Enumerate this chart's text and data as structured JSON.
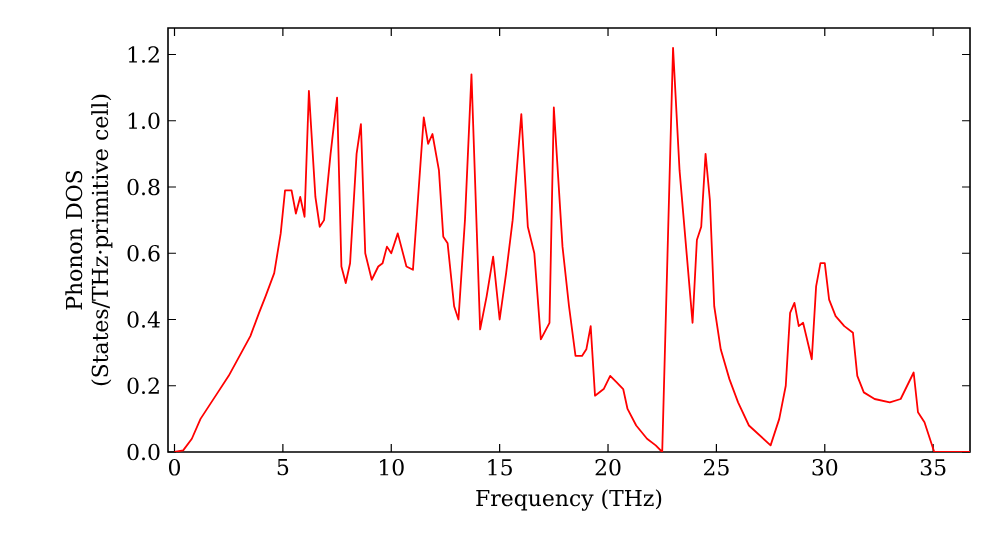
{
  "chart_data": {
    "type": "line",
    "xlabel": "Frequency (THz)",
    "ylabel": "Phonon DOS (States/THz·primitive cell)",
    "xlim": [
      -0.3,
      36.7
    ],
    "ylim": [
      0,
      1.28
    ],
    "xticks": [
      0,
      5,
      10,
      15,
      20,
      25,
      30,
      35
    ],
    "yticks": [
      {
        "value": 0,
        "label": "0.0"
      },
      {
        "value": 0.2,
        "label": "0.2"
      },
      {
        "value": 0.4,
        "label": "0.4"
      },
      {
        "value": 0.6,
        "label": "0.6"
      },
      {
        "value": 0.8,
        "label": "0.8"
      },
      {
        "value": 1.0,
        "label": "1.0"
      },
      {
        "value": 1.2,
        "label": "1.2"
      }
    ],
    "grid": false,
    "marker": "none",
    "line_style": "solid",
    "x": [
      0,
      0.4,
      0.8,
      1.2,
      1.6,
      2.0,
      2.5,
      3.0,
      3.5,
      3.9,
      4.2,
      4.6,
      4.9,
      5.1,
      5.4,
      5.6,
      5.8,
      6.0,
      6.2,
      6.5,
      6.7,
      6.9,
      7.2,
      7.5,
      7.7,
      7.9,
      8.1,
      8.4,
      8.6,
      8.8,
      9.1,
      9.4,
      9.6,
      9.8,
      10.0,
      10.3,
      10.7,
      11.0,
      11.5,
      11.7,
      11.9,
      12.2,
      12.4,
      12.6,
      12.9,
      13.1,
      13.4,
      13.7,
      14.1,
      14.4,
      14.7,
      15.0,
      15.3,
      15.6,
      16.0,
      16.3,
      16.6,
      16.9,
      17.3,
      17.5,
      17.9,
      18.2,
      18.5,
      18.8,
      19.0,
      19.2,
      19.4,
      19.8,
      20.1,
      20.4,
      20.7,
      20.9,
      21.3,
      21.8,
      22.2,
      22.5,
      23.0,
      23.3,
      23.6,
      23.9,
      24.1,
      24.3,
      24.5,
      24.7,
      24.9,
      25.2,
      25.6,
      26.0,
      26.5,
      27.0,
      27.5,
      27.9,
      28.2,
      28.4,
      28.6,
      28.8,
      29.0,
      29.4,
      29.6,
      29.8,
      30.0,
      30.2,
      30.5,
      30.9,
      31.3,
      31.5,
      31.8,
      32.3,
      33.0,
      33.5,
      34.1,
      34.3,
      34.6,
      35.05,
      36.7
    ],
    "series": [
      {
        "color": "#ff0000",
        "values": [
          0,
          0.005,
          0.04,
          0.1,
          0.14,
          0.18,
          0.23,
          0.29,
          0.35,
          0.42,
          0.47,
          0.54,
          0.66,
          0.79,
          0.79,
          0.72,
          0.77,
          0.71,
          1.09,
          0.77,
          0.68,
          0.7,
          0.9,
          1.07,
          0.56,
          0.51,
          0.57,
          0.9,
          0.99,
          0.6,
          0.52,
          0.56,
          0.57,
          0.62,
          0.6,
          0.66,
          0.56,
          0.55,
          1.01,
          0.93,
          0.96,
          0.85,
          0.65,
          0.63,
          0.44,
          0.4,
          0.7,
          1.14,
          0.37,
          0.47,
          0.59,
          0.4,
          0.54,
          0.7,
          1.02,
          0.68,
          0.6,
          0.34,
          0.39,
          1.04,
          0.62,
          0.44,
          0.29,
          0.29,
          0.31,
          0.38,
          0.17,
          0.19,
          0.23,
          0.21,
          0.19,
          0.13,
          0.08,
          0.04,
          0.02,
          0.0,
          1.22,
          0.85,
          0.62,
          0.39,
          0.64,
          0.68,
          0.9,
          0.76,
          0.44,
          0.31,
          0.22,
          0.15,
          0.08,
          0.05,
          0.02,
          0.1,
          0.2,
          0.42,
          0.45,
          0.38,
          0.39,
          0.28,
          0.5,
          0.57,
          0.57,
          0.46,
          0.41,
          0.38,
          0.36,
          0.23,
          0.18,
          0.16,
          0.15,
          0.16,
          0.24,
          0.12,
          0.09,
          0.0,
          0.0
        ]
      }
    ]
  }
}
